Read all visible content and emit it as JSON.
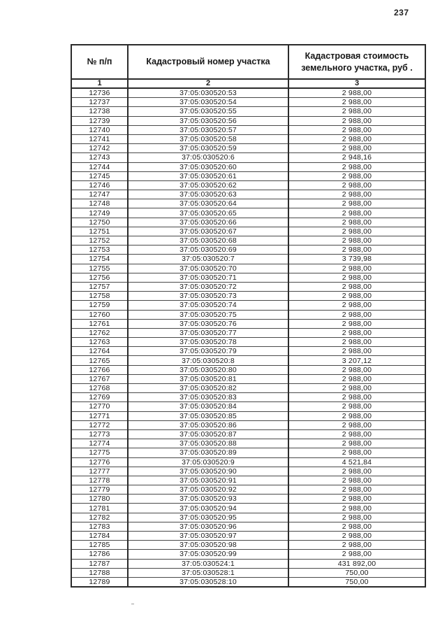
{
  "page": {
    "number": "237"
  },
  "table": {
    "headers": {
      "index": "№ п/п",
      "cadastral_number": "Кадастровый номер участка",
      "cadastral_value": "Кадастровая стоимость земельного участка, руб ."
    },
    "column_numbers": [
      "1",
      "2",
      "3"
    ],
    "rows": [
      [
        "12736",
        "37:05:030520:53",
        "2 988,00"
      ],
      [
        "12737",
        "37:05:030520:54",
        "2 988,00"
      ],
      [
        "12738",
        "37:05:030520:55",
        "2 988,00"
      ],
      [
        "12739",
        "37:05:030520:56",
        "2 988,00"
      ],
      [
        "12740",
        "37:05:030520:57",
        "2 988,00"
      ],
      [
        "12741",
        "37:05:030520:58",
        "2 988,00"
      ],
      [
        "12742",
        "37:05:030520:59",
        "2 988,00"
      ],
      [
        "12743",
        "37:05:030520:6",
        "2 948,16"
      ],
      [
        "12744",
        "37:05:030520:60",
        "2 988,00"
      ],
      [
        "12745",
        "37:05:030520:61",
        "2 988,00"
      ],
      [
        "12746",
        "37:05:030520:62",
        "2 988,00"
      ],
      [
        "12747",
        "37:05:030520:63",
        "2 988,00"
      ],
      [
        "12748",
        "37:05:030520:64",
        "2 988,00"
      ],
      [
        "12749",
        "37:05:030520:65",
        "2 988,00"
      ],
      [
        "12750",
        "37:05:030520:66",
        "2 988,00"
      ],
      [
        "12751",
        "37:05:030520:67",
        "2 988,00"
      ],
      [
        "12752",
        "37:05:030520:68",
        "2 988,00"
      ],
      [
        "12753",
        "37:05:030520:69",
        "2 988,00"
      ],
      [
        "12754",
        "37:05:030520:7",
        "3 739,98"
      ],
      [
        "12755",
        "37:05:030520:70",
        "2 988,00"
      ],
      [
        "12756",
        "37:05:030520:71",
        "2 988,00"
      ],
      [
        "12757",
        "37:05:030520:72",
        "2 988,00"
      ],
      [
        "12758",
        "37:05:030520:73",
        "2 988,00"
      ],
      [
        "12759",
        "37:05:030520:74",
        "2 988,00"
      ],
      [
        "12760",
        "37:05:030520:75",
        "2 988,00"
      ],
      [
        "12761",
        "37:05:030520:76",
        "2 988,00"
      ],
      [
        "12762",
        "37:05:030520:77",
        "2 988,00"
      ],
      [
        "12763",
        "37:05:030520:78",
        "2 988,00"
      ],
      [
        "12764",
        "37:05:030520:79",
        "2 988,00"
      ],
      [
        "12765",
        "37:05:030520:8",
        "3 207,12"
      ],
      [
        "12766",
        "37:05:030520:80",
        "2 988,00"
      ],
      [
        "12767",
        "37:05:030520:81",
        "2 988,00"
      ],
      [
        "12768",
        "37:05:030520:82",
        "2 988,00"
      ],
      [
        "12769",
        "37:05:030520:83",
        "2 988,00"
      ],
      [
        "12770",
        "37:05:030520:84",
        "2 988,00"
      ],
      [
        "12771",
        "37:05:030520:85",
        "2 988,00"
      ],
      [
        "12772",
        "37:05:030520:86",
        "2 988,00"
      ],
      [
        "12773",
        "37:05:030520:87",
        "2 988,00"
      ],
      [
        "12774",
        "37:05:030520:88",
        "2 988,00"
      ],
      [
        "12775",
        "37:05:030520:89",
        "2 988,00"
      ],
      [
        "12776",
        "37:05:030520:9",
        "4 521,84"
      ],
      [
        "12777",
        "37:05:030520:90",
        "2 988,00"
      ],
      [
        "12778",
        "37:05:030520:91",
        "2 988,00"
      ],
      [
        "12779",
        "37:05:030520:92",
        "2 988,00"
      ],
      [
        "12780",
        "37:05:030520:93",
        "2 988,00"
      ],
      [
        "12781",
        "37:05:030520:94",
        "2 988,00"
      ],
      [
        "12782",
        "37:05:030520:95",
        "2 988,00"
      ],
      [
        "12783",
        "37:05:030520:96",
        "2 988,00"
      ],
      [
        "12784",
        "37:05:030520:97",
        "2 988,00"
      ],
      [
        "12785",
        "37:05:030520:98",
        "2 988,00"
      ],
      [
        "12786",
        "37:05:030520:99",
        "2 988,00"
      ],
      [
        "12787",
        "37:05:030524:1",
        "431 892,00"
      ],
      [
        "12788",
        "37:05:030528:1",
        "750,00"
      ],
      [
        "12789",
        "37:05:030528:10",
        "750,00"
      ]
    ]
  }
}
